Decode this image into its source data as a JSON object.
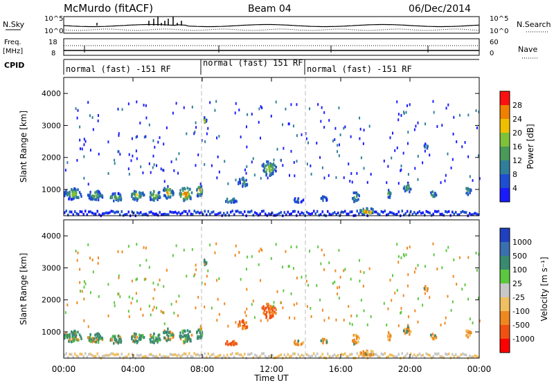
{
  "header": {
    "title": "McMurdo (fitACF)",
    "beam": "Beam 04",
    "date": "06/Dec/2014"
  },
  "top_panel": {
    "left_label_1": "N.Sky",
    "left_label_2": "Freq.",
    "left_label_3": "[MHz]",
    "left_label_4": "CPID",
    "right_label_1": "N.Search",
    "right_label_2": "Nave",
    "nsky_ticks": [
      "10^5",
      "10^0"
    ],
    "freq_ticks": [
      "18",
      "8"
    ],
    "nsearch_ticks": [
      "10^5",
      "10^0"
    ],
    "nave_ticks": [
      "60",
      "0"
    ]
  },
  "cpid": {
    "modes": [
      {
        "label": "normal (fast) -151 RF",
        "start_hour": 0
      },
      {
        "label": "normal (fast) 151 RF",
        "start_hour": 8
      },
      {
        "label": "normal (fast) -151 RF",
        "start_hour": 14
      }
    ]
  },
  "chart_data": [
    {
      "type": "heatmap",
      "name": "power",
      "ylabel": "Slant Range [km]",
      "yticks": [
        "1000",
        "2000",
        "3000",
        "4000"
      ],
      "ylim": [
        180,
        4500
      ],
      "xlim": [
        0,
        24
      ],
      "colorbar_label": "Power [dB]",
      "colorbar_ticks": [
        "4",
        "8",
        "12",
        "16",
        "20",
        "24",
        "28"
      ],
      "colors": [
        "#1a1aff",
        "#1e4fd0",
        "#2f7f9a",
        "#4a9a5a",
        "#7fc23a",
        "#f0c000",
        "#f08000",
        "#ff1010"
      ]
    },
    {
      "type": "heatmap",
      "name": "velocity",
      "ylabel": "Slant Range [km]",
      "yticks": [
        "1000",
        "2000",
        "3000",
        "4000"
      ],
      "ylim": [
        180,
        4500
      ],
      "xlim": [
        0,
        24
      ],
      "colorbar_label": "Velocity [m s⁻¹]",
      "colorbar_ticks": [
        "1000",
        "500",
        "100",
        "25",
        "-25",
        "-100",
        "-500",
        "-1000"
      ],
      "colors": [
        "#2040c0",
        "#3a6fb0",
        "#3a8a70",
        "#5cc840",
        "#c8c8c8",
        "#f0c060",
        "#f08820",
        "#f05010",
        "#ff0000"
      ]
    }
  ],
  "xaxis": {
    "label": "Time UT",
    "ticks": [
      "00:00",
      "04:00",
      "08:00",
      "12:00",
      "16:00",
      "20:00",
      "00:00"
    ]
  }
}
